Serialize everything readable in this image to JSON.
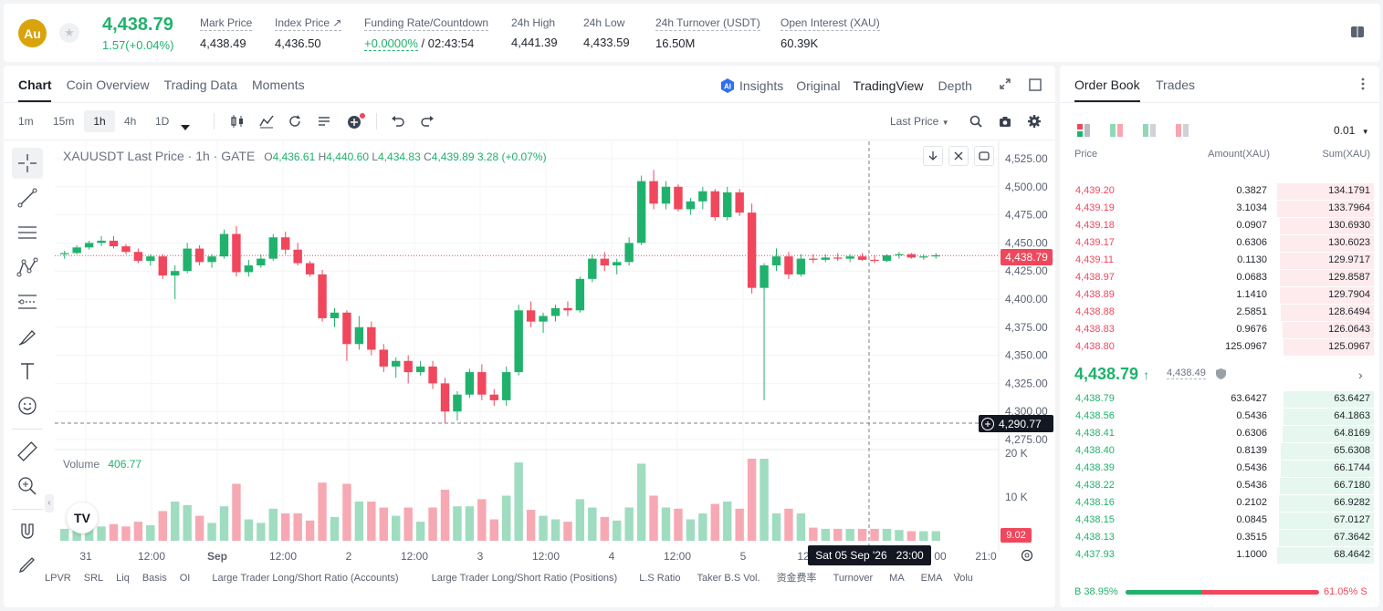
{
  "header": {
    "logo": "Au",
    "star_icon": "★",
    "last_price": "4,438.79",
    "change": "1.57(+0.04%)",
    "stats": [
      {
        "label": "Mark Price",
        "value": "4,438.49"
      },
      {
        "label": "Index Price ↗",
        "value": "4,436.50"
      },
      {
        "label": "Funding Rate/Countdown",
        "value": "+0.0000%",
        "value2": " / 02:43:54"
      },
      {
        "label": "24h High",
        "value": "4,441.39"
      },
      {
        "label": "24h Low",
        "value": "4,433.59"
      },
      {
        "label": "24h Turnover (USDT)",
        "value": "16.50M"
      },
      {
        "label": "Open Interest (XAU)",
        "value": "60.39K"
      }
    ]
  },
  "chart_tabs": [
    "Chart",
    "Coin Overview",
    "Trading Data",
    "Moments"
  ],
  "view_tabs": {
    "insights": "Insights",
    "original": "Original",
    "tradingview": "TradingView",
    "depth": "Depth"
  },
  "intervals": [
    "1m",
    "15m",
    "1h",
    "4h",
    "1D"
  ],
  "price_type": "Last Price",
  "legend": {
    "symbol": "XAUUSDT Last Price · 1h · GATE",
    "o_label": "O",
    "o": "4,436.61",
    "h_label": "H",
    "h": "4,440.60",
    "l_label": "L",
    "l": "4,434.83",
    "c_label": "C",
    "c": "4,439.89",
    "chg": "3.28 (+0.07%)"
  },
  "volume": {
    "label": "Volume",
    "value": "406.77"
  },
  "crosshair": {
    "price": "4,290.77",
    "time": "Sat 05 Sep '26   23:00",
    "last": "4,438.79",
    "vol": "9.02"
  },
  "indicators": [
    "LPVR",
    "SRL",
    "Liq",
    "Basis",
    "OI",
    "Large Trader Long/Short Ratio (Accounts)",
    "Large Trader Long/Short Ratio (Positions)",
    "L.S Ratio",
    "Taker B.S Vol.",
    "资金费率",
    "Turnover",
    "MA",
    "EMA",
    "Volu"
  ],
  "orderbook": {
    "tab1": "Order Book",
    "tab2": "Trades",
    "precision": "0.01",
    "col_price": "Price",
    "col_amount": "Amount(XAU)",
    "col_sum": "Sum(XAU)",
    "asks": [
      {
        "price": "4,439.20",
        "amount": "0.3827",
        "sum": "134.1791"
      },
      {
        "price": "4,439.19",
        "amount": "3.1034",
        "sum": "133.7964"
      },
      {
        "price": "4,439.18",
        "amount": "0.0907",
        "sum": "130.6930"
      },
      {
        "price": "4,439.17",
        "amount": "0.6306",
        "sum": "130.6023"
      },
      {
        "price": "4,439.11",
        "amount": "0.1130",
        "sum": "129.9717"
      },
      {
        "price": "4,438.97",
        "amount": "0.0683",
        "sum": "129.8587"
      },
      {
        "price": "4,438.89",
        "amount": "1.1410",
        "sum": "129.7904"
      },
      {
        "price": "4,438.88",
        "amount": "2.5851",
        "sum": "128.6494"
      },
      {
        "price": "4,438.83",
        "amount": "0.9676",
        "sum": "126.0643"
      },
      {
        "price": "4,438.80",
        "amount": "125.0967",
        "sum": "125.0967"
      }
    ],
    "mid": "4,438.79",
    "mid_arrow": "↑",
    "mark": "4,438.49",
    "bids": [
      {
        "price": "4,438.79",
        "amount": "63.6427",
        "sum": "63.6427"
      },
      {
        "price": "4,438.56",
        "amount": "0.5436",
        "sum": "64.1863"
      },
      {
        "price": "4,438.41",
        "amount": "0.6306",
        "sum": "64.8169"
      },
      {
        "price": "4,438.40",
        "amount": "0.8139",
        "sum": "65.6308"
      },
      {
        "price": "4,438.39",
        "amount": "0.5436",
        "sum": "66.1744"
      },
      {
        "price": "4,438.22",
        "amount": "0.5436",
        "sum": "66.7180"
      },
      {
        "price": "4,438.16",
        "amount": "0.2102",
        "sum": "66.9282"
      },
      {
        "price": "4,438.15",
        "amount": "0.0845",
        "sum": "67.0127"
      },
      {
        "price": "4,438.13",
        "amount": "0.3515",
        "sum": "67.3642"
      },
      {
        "price": "4,437.93",
        "amount": "1.1000",
        "sum": "68.4642"
      }
    ],
    "buy_label": "B",
    "buy_pct": "38.95%",
    "sell_pct": "61.05%",
    "sell_label": "S",
    "buy_ratio": 0.3895
  },
  "chart_data": {
    "type": "candlestick",
    "y_ticks": [
      "4,525.00",
      "4,500.00",
      "4,475.00",
      "4,450.00",
      "4,425.00",
      "4,400.00",
      "4,375.00",
      "4,350.00",
      "4,325.00",
      "4,300.00",
      "4,275.00"
    ],
    "x_ticks": [
      "31",
      "12:00",
      "Sep",
      "12:00",
      "2",
      "12:00",
      "3",
      "12:00",
      "4",
      "12:00",
      "5",
      "12",
      "00",
      "21:0"
    ],
    "vol_ticks": [
      "20 K",
      "10 K"
    ],
    "ylim": [
      4275,
      4525
    ],
    "ohlc": [
      [
        4440,
        4443,
        4436,
        4441
      ],
      [
        4441,
        4448,
        4440,
        4446
      ],
      [
        4446,
        4452,
        4444,
        4450
      ],
      [
        4450,
        4456,
        4447,
        4452
      ],
      [
        4452,
        4456,
        4445,
        4447
      ],
      [
        4447,
        4449,
        4440,
        4442
      ],
      [
        4442,
        4445,
        4432,
        4434
      ],
      [
        4434,
        4440,
        4430,
        4438
      ],
      [
        4438,
        4440,
        4418,
        4421
      ],
      [
        4421,
        4430,
        4400,
        4425
      ],
      [
        4425,
        4450,
        4423,
        4445
      ],
      [
        4445,
        4448,
        4430,
        4433
      ],
      [
        4433,
        4440,
        4428,
        4438
      ],
      [
        4438,
        4462,
        4436,
        4458
      ],
      [
        4458,
        4465,
        4420,
        4424
      ],
      [
        4424,
        4435,
        4420,
        4430
      ],
      [
        4430,
        4440,
        4428,
        4436
      ],
      [
        4436,
        4458,
        4434,
        4455
      ],
      [
        4455,
        4460,
        4440,
        4444
      ],
      [
        4444,
        4450,
        4430,
        4432
      ],
      [
        4432,
        4434,
        4420,
        4422
      ],
      [
        4422,
        4426,
        4380,
        4383
      ],
      [
        4383,
        4392,
        4375,
        4388
      ],
      [
        4388,
        4390,
        4345,
        4360
      ],
      [
        4360,
        4385,
        4355,
        4375
      ],
      [
        4375,
        4380,
        4350,
        4355
      ],
      [
        4355,
        4360,
        4335,
        4340
      ],
      [
        4340,
        4348,
        4330,
        4345
      ],
      [
        4345,
        4350,
        4325,
        4335
      ],
      [
        4335,
        4345,
        4332,
        4340
      ],
      [
        4340,
        4345,
        4320,
        4325
      ],
      [
        4325,
        4330,
        4290,
        4300
      ],
      [
        4300,
        4318,
        4292,
        4315
      ],
      [
        4315,
        4338,
        4312,
        4335
      ],
      [
        4335,
        4342,
        4310,
        4315
      ],
      [
        4315,
        4320,
        4305,
        4310
      ],
      [
        4310,
        4340,
        4305,
        4335
      ],
      [
        4335,
        4395,
        4332,
        4390
      ],
      [
        4390,
        4398,
        4375,
        4380
      ],
      [
        4380,
        4388,
        4370,
        4385
      ],
      [
        4385,
        4395,
        4380,
        4392
      ],
      [
        4392,
        4398,
        4385,
        4390
      ],
      [
        4390,
        4420,
        4388,
        4418
      ],
      [
        4418,
        4440,
        4415,
        4436
      ],
      [
        4436,
        4442,
        4425,
        4430
      ],
      [
        4430,
        4436,
        4422,
        4433
      ],
      [
        4433,
        4455,
        4430,
        4450
      ],
      [
        4450,
        4510,
        4448,
        4505
      ],
      [
        4505,
        4515,
        4480,
        4485
      ],
      [
        4485,
        4505,
        4480,
        4500
      ],
      [
        4500,
        4502,
        4478,
        4480
      ],
      [
        4480,
        4490,
        4475,
        4487
      ],
      [
        4487,
        4500,
        4480,
        4496
      ],
      [
        4496,
        4498,
        4470,
        4473
      ],
      [
        4473,
        4500,
        4470,
        4495
      ],
      [
        4495,
        4498,
        4474,
        4477
      ],
      [
        4477,
        4485,
        4405,
        4410
      ],
      [
        4410,
        4432,
        4310,
        4430
      ],
      [
        4430,
        4445,
        4425,
        4438
      ],
      [
        4438,
        4442,
        4418,
        4422
      ],
      [
        4422,
        4440,
        4420,
        4436
      ],
      [
        4436,
        4440,
        4432,
        4435
      ],
      [
        4435,
        4440,
        4433,
        4437
      ],
      [
        4437,
        4441,
        4434,
        4436
      ],
      [
        4436,
        4440,
        4433,
        4438
      ],
      [
        4438,
        4441,
        4434,
        4435
      ],
      [
        4435,
        4439,
        4432,
        4434
      ],
      [
        4434,
        4440,
        4433,
        4439
      ],
      [
        4439,
        4442,
        4436,
        4440
      ],
      [
        4440,
        4441,
        4436,
        4437
      ],
      [
        4437,
        4440,
        4435,
        4438
      ],
      [
        4438,
        4441,
        4436,
        4439
      ]
    ]
  }
}
